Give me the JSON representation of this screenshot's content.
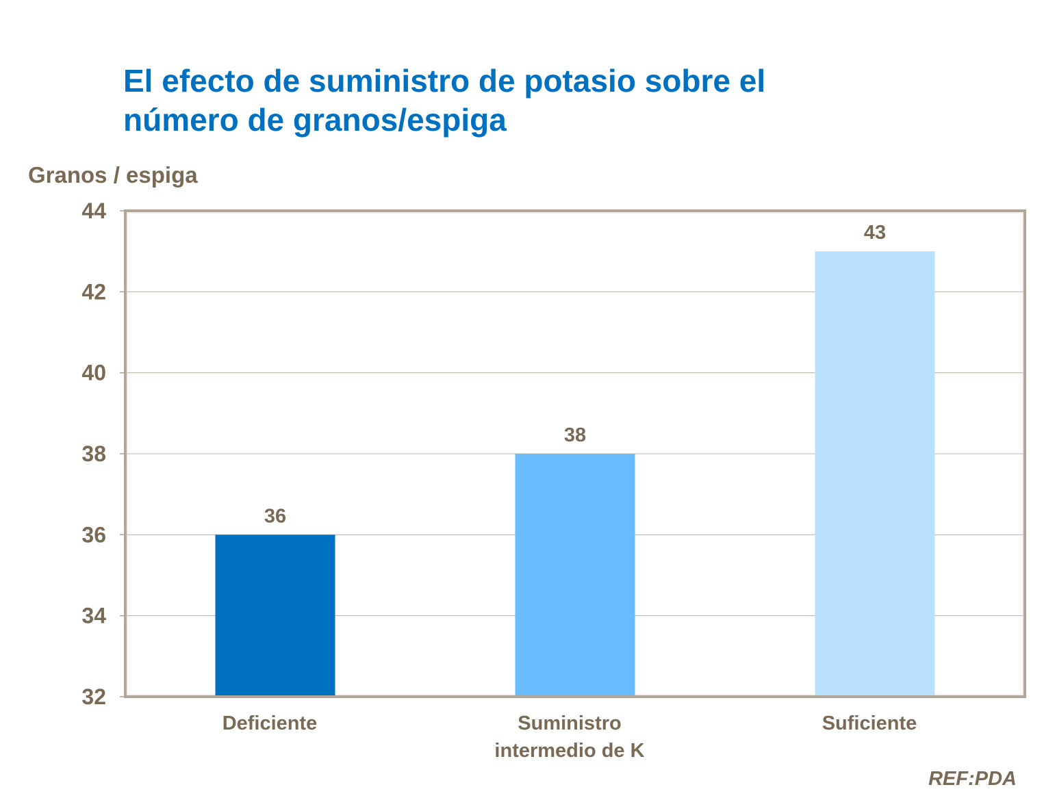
{
  "chart_data": {
    "type": "bar",
    "title": "El efecto de suministro de potasio sobre el número de granos/espiga",
    "title_lines": [
      "El efecto de suministro de potasio sobre el",
      "número de granos/espiga"
    ],
    "ylabel": "Granos / espiga",
    "xlabel": "",
    "categories": [
      "Deficiente",
      "Suministro intermedio de K",
      "Suficiente"
    ],
    "category_lines": [
      [
        "Deficiente"
      ],
      [
        "Suministro",
        "intermedio de K"
      ],
      [
        "Suficiente"
      ]
    ],
    "values": [
      36,
      38,
      43
    ],
    "data_labels": [
      "36",
      "38",
      "43"
    ],
    "colors": [
      "#0070c0",
      "#69bdff",
      "#b9e0ff"
    ],
    "ylim": [
      32,
      44
    ],
    "yticks": [
      32,
      34,
      36,
      38,
      40,
      42,
      44
    ],
    "grid": true,
    "legend": "none"
  },
  "footer": {
    "reference": "REF:PDA"
  }
}
